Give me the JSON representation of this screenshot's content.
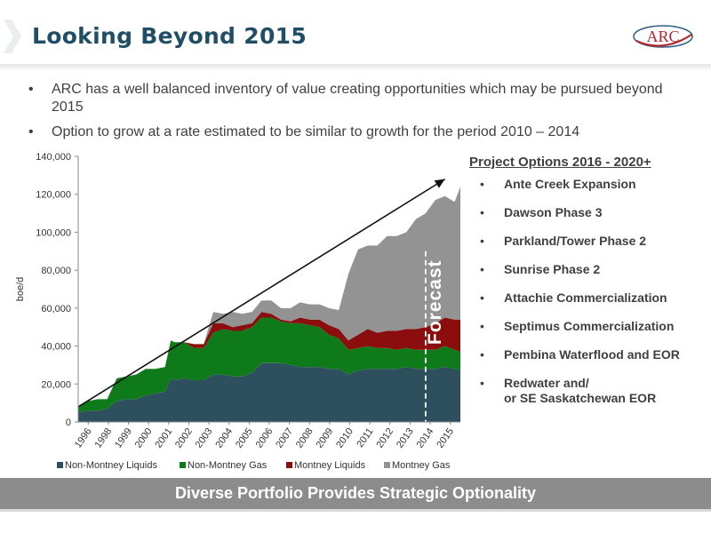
{
  "slide": {
    "title": "Looking Beyond 2015",
    "logo_text": "ARC",
    "bullets": [
      "ARC has a well balanced inventory of value creating opportunities which may be pursued beyond 2015",
      "Option to grow at a rate estimated to be similar to growth for the period 2010 – 2014"
    ],
    "bullet_marker": "•",
    "footer": "Diverse Portfolio Provides Strategic Optionality"
  },
  "options": {
    "heading": "Project Options 2016 - 2020+",
    "items": [
      "Ante Creek Expansion",
      "Dawson Phase 3",
      "Parkland/Tower Phase 2",
      "Sunrise Phase 2",
      "Attachie Commercialization",
      "Septimus Commercialization",
      "Pembina Waterflood and EOR",
      "Redwater and/\nor SE Saskatchewan EOR"
    ]
  },
  "colors": {
    "title": "#1f4e66",
    "non_montney_liquids": "#2e4f5e",
    "non_montney_gas": "#0f7a1a",
    "montney_liquids": "#8b0d0d",
    "montney_gas": "#939393",
    "footer": "#8c8c8c"
  },
  "chart_data": {
    "type": "area",
    "stacked": true,
    "ylabel": "boe/d",
    "xlabel": "",
    "ylim": [
      0,
      140000
    ],
    "yticks": [
      0,
      20000,
      40000,
      60000,
      80000,
      100000,
      120000,
      140000
    ],
    "ytick_labels": [
      "0",
      "20,000",
      "40,000",
      "60,000",
      "80,000",
      "100,000",
      "120,000",
      "140,000"
    ],
    "xlim": [
      1996.0,
      2015.8
    ],
    "xtick_labels": [
      "1996",
      "1998",
      "1999",
      "2000",
      "2001",
      "2002",
      "2003",
      "2004",
      "2005",
      "2006",
      "2007",
      "2008",
      "2009",
      "2010",
      "2011",
      "2012",
      "2013",
      "2014",
      "2015"
    ],
    "forecast_start": 2014.0,
    "forecast_label": "Forecast",
    "trend_arrow": {
      "from": [
        1996.0,
        8000
      ],
      "to": [
        2015.0,
        128000
      ]
    },
    "legend_position": "bottom",
    "x": [
      1996.0,
      1996.5,
      1997.0,
      1997.5,
      1998.0,
      1998.5,
      1999.0,
      1999.5,
      2000.0,
      2000.5,
      2000.8,
      2001.0,
      2001.5,
      2002.0,
      2002.5,
      2003.0,
      2003.5,
      2004.0,
      2004.5,
      2005.0,
      2005.5,
      2006.0,
      2006.5,
      2007.0,
      2007.5,
      2008.0,
      2008.5,
      2009.0,
      2009.5,
      2010.0,
      2010.5,
      2011.0,
      2011.5,
      2012.0,
      2012.5,
      2013.0,
      2013.5,
      2014.0,
      2014.5,
      2015.0,
      2015.5,
      2015.8
    ],
    "series": [
      {
        "name": "Non-Montney Liquids",
        "values": [
          5000,
          6000,
          6000,
          7000,
          11000,
          12000,
          12000,
          14000,
          15000,
          16000,
          23000,
          22000,
          23000,
          22000,
          22000,
          25000,
          25000,
          24000,
          24000,
          26000,
          31000,
          31000,
          31000,
          30000,
          29000,
          29000,
          29000,
          28000,
          28000,
          25000,
          27000,
          28000,
          28000,
          28000,
          28000,
          29000,
          28000,
          28000,
          28000,
          29000,
          28000,
          27000
        ]
      },
      {
        "name": "Non-Montney Gas",
        "values": [
          3000,
          5000,
          6000,
          5000,
          12000,
          12000,
          13000,
          14000,
          13000,
          13000,
          20000,
          20000,
          19000,
          17000,
          17000,
          22000,
          24000,
          24000,
          24000,
          24000,
          24000,
          24000,
          22000,
          22000,
          23000,
          22000,
          21000,
          18000,
          16000,
          13000,
          12000,
          12000,
          11000,
          11000,
          10000,
          10000,
          10000,
          10000,
          10000,
          11000,
          10000,
          10000
        ]
      },
      {
        "name": "Montney Liquids",
        "values": [
          0,
          0,
          0,
          0,
          0,
          0,
          0,
          0,
          0,
          0,
          0,
          0,
          0,
          2000,
          2000,
          5000,
          3000,
          2000,
          3000,
          2000,
          3000,
          2000,
          1000,
          1000,
          3000,
          3000,
          4000,
          5000,
          5000,
          5000,
          7000,
          9000,
          8000,
          9000,
          10000,
          10000,
          11000,
          12000,
          14000,
          15000,
          16000,
          17000
        ]
      },
      {
        "name": "Montney Gas",
        "values": [
          0,
          0,
          0,
          0,
          0,
          0,
          0,
          0,
          0,
          0,
          0,
          0,
          0,
          0,
          0,
          6000,
          5000,
          8000,
          6000,
          6000,
          6000,
          7000,
          6000,
          7000,
          8000,
          8000,
          8000,
          9000,
          10000,
          35000,
          45000,
          44000,
          46000,
          50000,
          50000,
          51000,
          58000,
          60000,
          65000,
          64000,
          62000,
          70000
        ]
      }
    ]
  }
}
